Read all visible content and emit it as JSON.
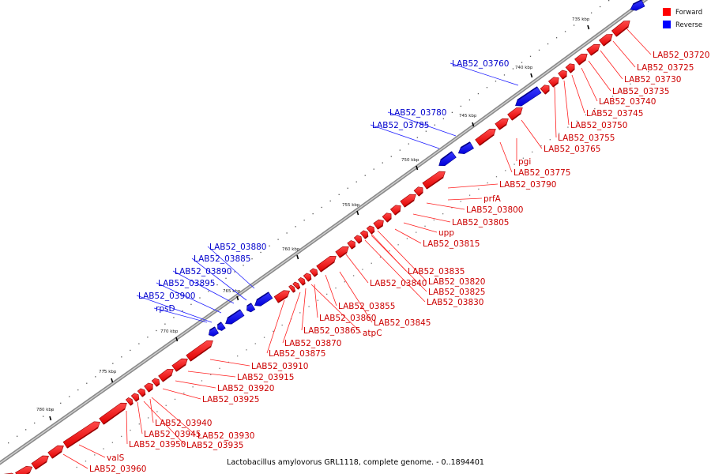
{
  "legend": [
    {
      "label": "Forward",
      "color": "#ff0000"
    },
    {
      "label": "Reverse",
      "color": "#0000ff"
    }
  ],
  "caption": "Lactobacillus amylovorus GRL1118, complete genome. - 0..1894401",
  "ticks": [
    "735 kbp",
    "740 kbp",
    "745 kbp",
    "750 kbp",
    "755 kbp",
    "760 kbp",
    "765 kbp",
    "770 kbp",
    "775 kbp",
    "780 kbp"
  ],
  "genes_forward": [
    "LAB52_03720",
    "LAB52_03725",
    "LAB52_03730",
    "LAB52_03735",
    "LAB52_03740",
    "LAB52_03745",
    "LAB52_03750",
    "LAB52_03755",
    "LAB52_03765",
    "pgi",
    "LAB52_03775",
    "LAB52_03790",
    "prfA",
    "LAB52_03800",
    "LAB52_03805",
    "upp",
    "LAB52_03815",
    "LAB52_03835",
    "LAB52_03840",
    "LAB52_03820",
    "LAB52_03825",
    "LAB52_03830",
    "LAB52_03855",
    "LAB52_03845",
    "LAB52_03860",
    "atpC",
    "LAB52_03865",
    "LAB52_03870",
    "LAB52_03875",
    "LAB52_03910",
    "LAB52_03915",
    "LAB52_03920",
    "LAB52_03925",
    "LAB52_03940",
    "LAB52_03945",
    "LAB52_03930",
    "LAB52_03950",
    "LAB52_03935",
    "valS",
    "LAB52_03960"
  ],
  "genes_reverse": [
    "LAB52_03760",
    "LAB52_03780",
    "LAB52_03785",
    "LAB52_03880",
    "LAB52_03885",
    "LAB52_03890",
    "LAB52_03895",
    "LAB52_03900",
    "rpsD"
  ]
}
